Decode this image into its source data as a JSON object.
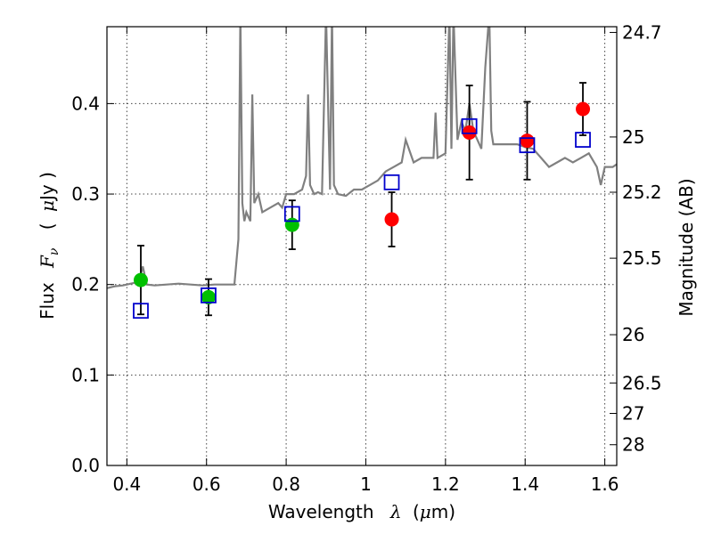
{
  "chart_data": {
    "type": "scatter",
    "xlabel": "Wavelength",
    "xlabel_symbol": "λ",
    "xlabel_unit_open": "(",
    "xlabel_unit_mu": "μ",
    "xlabel_unit_rest": "m)",
    "ylabel": "Flux",
    "ylabel_symbol": "F",
    "ylabel_subscript": "ν",
    "ylabel_unit_open": "(",
    "ylabel_unit_mu": "μ",
    "ylabel_unit_rest": "Jy )",
    "y2label": "Magnitude (AB)",
    "xlim": [
      0.35,
      1.63
    ],
    "ylim": [
      0.0,
      0.485
    ],
    "grid": true,
    "xticks": [
      0.4,
      0.6,
      0.8,
      1.0,
      1.2,
      1.4,
      1.6
    ],
    "xtick_labels": [
      "0.4",
      "0.6",
      "0.8",
      "1",
      "1.2",
      "1.4",
      "1.6"
    ],
    "yticks": [
      0.0,
      0.1,
      0.2,
      0.3,
      0.4
    ],
    "ytick_labels": [
      "0.0",
      "0.1",
      "0.2",
      "0.3",
      "0.4"
    ],
    "y2ticks": [
      {
        "label": "24.7",
        "mag": 24.7
      },
      {
        "label": "25",
        "mag": 25.0
      },
      {
        "label": "25.2",
        "mag": 25.2
      },
      {
        "label": "25.5",
        "mag": 25.5
      },
      {
        "label": "26",
        "mag": 26.0
      },
      {
        "label": "26.5",
        "mag": 26.5
      },
      {
        "label": "27",
        "mag": 27.0
      },
      {
        "label": "28",
        "mag": 28.0
      }
    ],
    "colors": {
      "spectrum": "#808080",
      "green_points": "#00c000",
      "red_points": "#ff0000",
      "model_boxes": "#0000cc",
      "errorbars": "#000000",
      "grid": "#444444"
    },
    "series": [
      {
        "name": "spectrum",
        "kind": "line",
        "x": [
          0.35,
          0.37,
          0.39,
          0.41,
          0.43,
          0.44,
          0.45,
          0.47,
          0.5,
          0.53,
          0.56,
          0.59,
          0.62,
          0.65,
          0.67,
          0.68,
          0.685,
          0.69,
          0.695,
          0.7,
          0.71,
          0.715,
          0.72,
          0.73,
          0.74,
          0.76,
          0.78,
          0.79,
          0.8,
          0.82,
          0.84,
          0.85,
          0.855,
          0.86,
          0.87,
          0.88,
          0.89,
          0.9,
          0.91,
          0.915,
          0.92,
          0.925,
          0.93,
          0.95,
          0.97,
          0.99,
          1.01,
          1.03,
          1.05,
          1.07,
          1.09,
          1.1,
          1.12,
          1.14,
          1.16,
          1.17,
          1.175,
          1.18,
          1.2,
          1.21,
          1.215,
          1.22,
          1.23,
          1.24,
          1.25,
          1.26,
          1.27,
          1.28,
          1.29,
          1.3,
          1.31,
          1.315,
          1.32,
          1.34,
          1.36,
          1.38,
          1.4,
          1.42,
          1.44,
          1.46,
          1.48,
          1.5,
          1.52,
          1.54,
          1.56,
          1.58,
          1.59,
          1.6,
          1.61,
          1.62,
          1.63
        ],
        "y": [
          0.196,
          0.198,
          0.199,
          0.201,
          0.203,
          0.22,
          0.2,
          0.199,
          0.2,
          0.201,
          0.2,
          0.199,
          0.2,
          0.2,
          0.2,
          0.25,
          0.5,
          0.29,
          0.27,
          0.28,
          0.27,
          0.41,
          0.29,
          0.3,
          0.28,
          0.285,
          0.29,
          0.285,
          0.3,
          0.3,
          0.305,
          0.32,
          0.41,
          0.31,
          0.3,
          0.302,
          0.3,
          0.5,
          0.305,
          0.5,
          0.31,
          0.305,
          0.3,
          0.298,
          0.305,
          0.305,
          0.31,
          0.315,
          0.325,
          0.33,
          0.335,
          0.36,
          0.335,
          0.34,
          0.34,
          0.34,
          0.39,
          0.34,
          0.345,
          0.5,
          0.35,
          0.5,
          0.36,
          0.38,
          0.37,
          0.4,
          0.37,
          0.36,
          0.35,
          0.44,
          0.5,
          0.37,
          0.355,
          0.355,
          0.355,
          0.355,
          0.352,
          0.35,
          0.34,
          0.33,
          0.335,
          0.34,
          0.335,
          0.34,
          0.345,
          0.33,
          0.31,
          0.33,
          0.33,
          0.33,
          0.333
        ]
      },
      {
        "name": "green_points",
        "kind": "markers",
        "x": [
          0.435,
          0.605,
          0.815
        ],
        "y": [
          0.205,
          0.186,
          0.266
        ],
        "yerr": [
          0.038,
          0.02,
          0.027
        ]
      },
      {
        "name": "red_points",
        "kind": "markers",
        "x": [
          1.065,
          1.26,
          1.405,
          1.545
        ],
        "y": [
          0.272,
          0.368,
          0.359,
          0.394
        ],
        "yerr": [
          0.03,
          0.052,
          0.043,
          0.029
        ]
      },
      {
        "name": "model_boxes",
        "kind": "open-squares",
        "x": [
          0.435,
          0.605,
          0.815,
          1.065,
          1.26,
          1.405,
          1.545
        ],
        "y": [
          0.171,
          0.188,
          0.278,
          0.313,
          0.375,
          0.354,
          0.36
        ]
      }
    ]
  }
}
